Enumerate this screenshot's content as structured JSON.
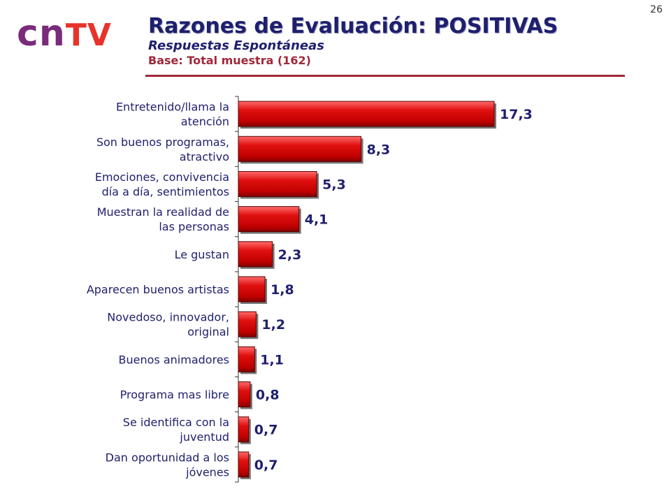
{
  "page_number": "26",
  "logo": {
    "part1": "cn",
    "part2": "TV"
  },
  "header": {
    "title": "Razones de Evaluación: POSITIVAS",
    "subtitle": "Respuestas Espontáneas",
    "base": "Base: Total muestra (162)"
  },
  "colors": {
    "bar_fill": "#e01010",
    "bar_dark": "#800000",
    "value_text": "#1f1f6e",
    "title": "#1f1f6e",
    "accent": "#a0283a"
  },
  "chart_data": {
    "type": "bar",
    "orientation": "horizontal",
    "title": "",
    "xlabel": "",
    "ylabel": "",
    "xlim": [
      0,
      18.5
    ],
    "grid": false,
    "legend": "none",
    "categories": [
      [
        "Entretenido/llama la",
        "atención"
      ],
      [
        "Son buenos programas,",
        "atractivo"
      ],
      [
        "Emociones, convivencia",
        "día a día, sentimientos"
      ],
      [
        "Muestran la realidad de",
        "las personas"
      ],
      [
        "Le gustan"
      ],
      [
        "Aparecen buenos artistas"
      ],
      [
        "Novedoso, innovador,",
        "original"
      ],
      [
        "Buenos animadores"
      ],
      [
        "Programa mas libre"
      ],
      [
        "Se identifica con la",
        "juventud"
      ],
      [
        "Dan oportunidad a los",
        "jóvenes"
      ]
    ],
    "values": [
      17.3,
      8.3,
      5.3,
      4.1,
      2.3,
      1.8,
      1.2,
      1.1,
      0.8,
      0.7,
      0.7
    ],
    "value_labels": [
      "17,3",
      "8,3",
      "5,3",
      "4,1",
      "2,3",
      "1,8",
      "1,2",
      "1,1",
      "0,8",
      "0,7",
      "0,7"
    ]
  }
}
